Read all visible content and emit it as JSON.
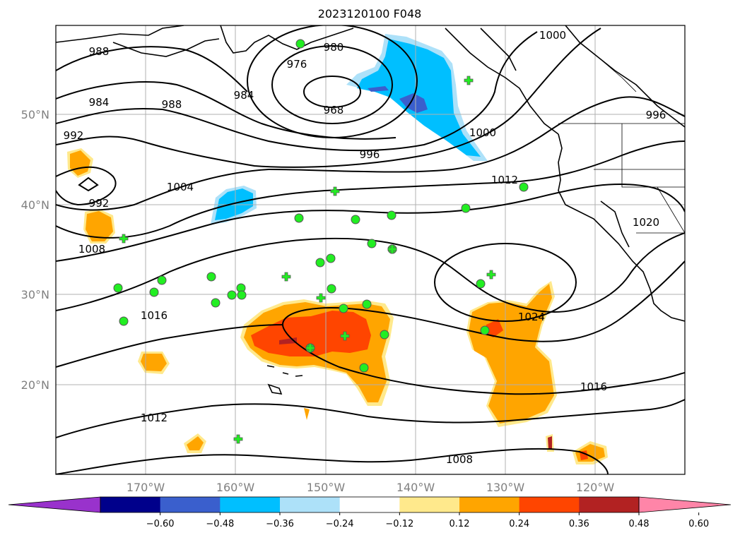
{
  "title": "2023120100 F048",
  "axes": {
    "lat_labels": [
      "50°N",
      "40°N",
      "30°N",
      "20°N"
    ],
    "lon_labels": [
      "170°W",
      "160°W",
      "150°W",
      "140°W",
      "130°W",
      "120°W"
    ]
  },
  "isobar_labels": [
    "988",
    "984",
    "988",
    "992",
    "976",
    "980",
    "984",
    "968",
    "996",
    "1000",
    "1000",
    "996",
    "992",
    "1004",
    "1008",
    "1012",
    "1016",
    "1012",
    "1024",
    "1016",
    "1020",
    "1008"
  ],
  "colorbar": {
    "tick_labels": [
      "−0.60",
      "−0.48",
      "−0.36",
      "−0.24",
      "−0.12",
      "0.12",
      "0.24",
      "0.36",
      "0.48",
      "0.60"
    ],
    "colors": [
      "#9932CC",
      "#00008B",
      "#3A5FCD",
      "#00BFFF",
      "#ADE1F9",
      "#FFFFFF",
      "#FFE98C",
      "#FFA500",
      "#FF4500",
      "#B22222",
      "#FF85A8"
    ],
    "extend": "both"
  },
  "station_markers": {
    "circle_color": "#22EE22",
    "plus_color": "#22EE22"
  }
}
